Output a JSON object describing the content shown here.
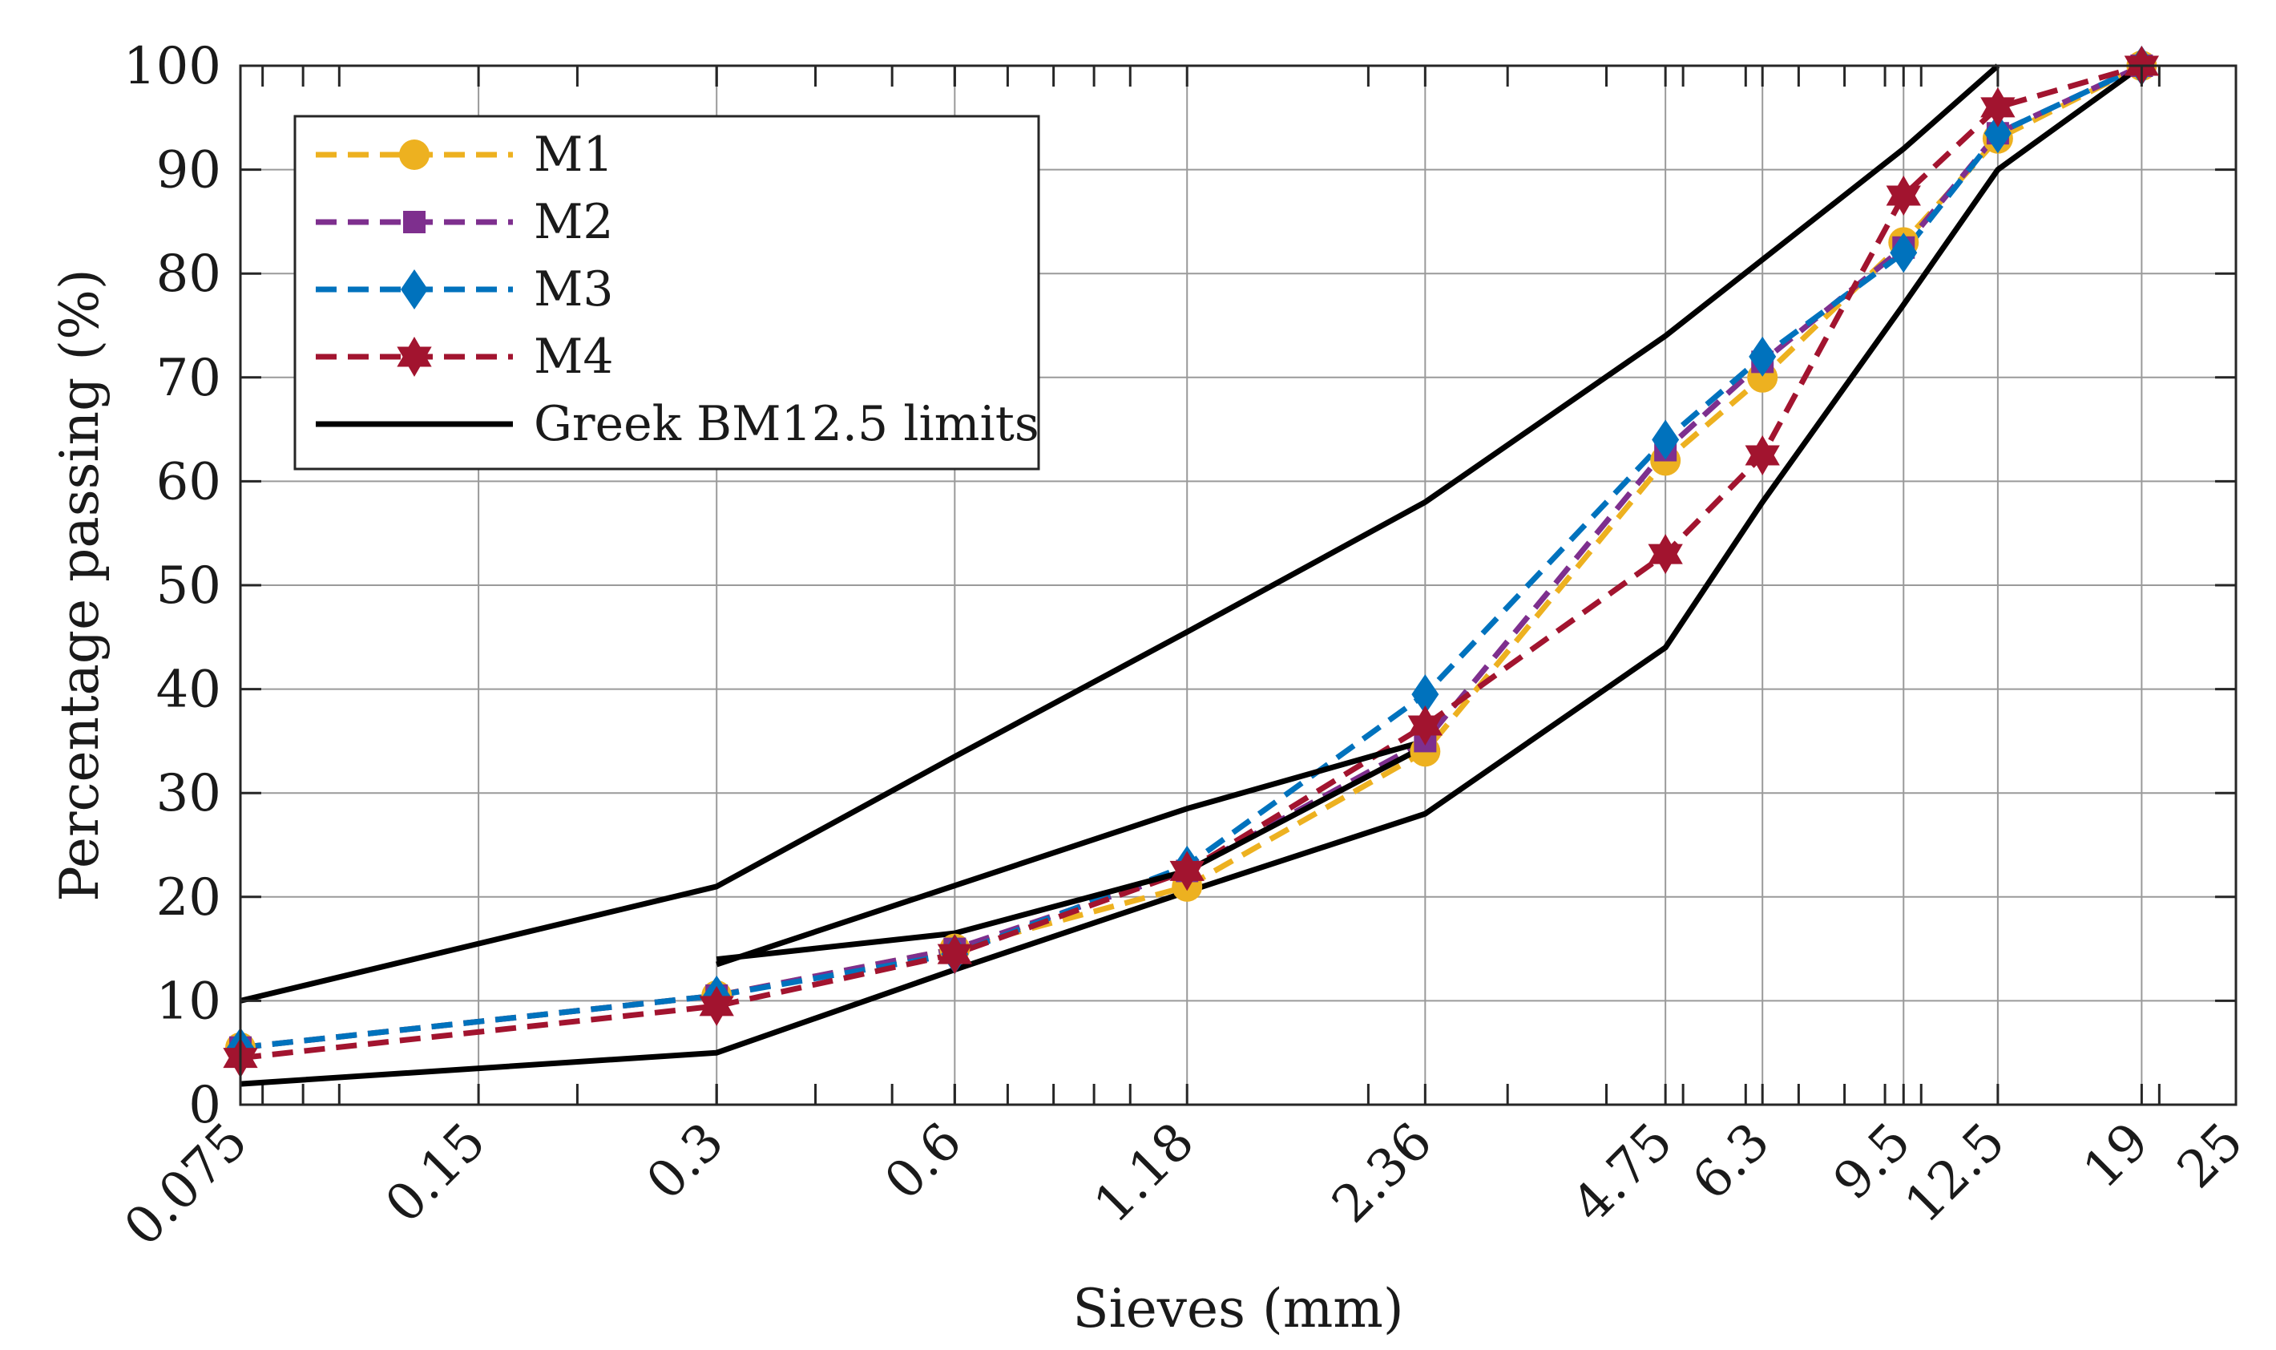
{
  "chart_data": {
    "type": "line",
    "xscale": "log",
    "x_ticks": [
      0.075,
      0.15,
      0.3,
      0.6,
      1.18,
      2.36,
      4.75,
      6.3,
      9.5,
      12.5,
      19,
      25
    ],
    "x_tick_labels": [
      "0.075",
      "0.15",
      "0.3",
      "0.6",
      "1.18",
      "2.36",
      "4.75",
      "6.3",
      "9.5",
      "12.5",
      "19",
      "25"
    ],
    "xlim": [
      0.075,
      25
    ],
    "ylim": [
      0,
      100
    ],
    "y_ticks": [
      0,
      10,
      20,
      30,
      40,
      50,
      60,
      70,
      80,
      90,
      100
    ],
    "y_tick_labels": [
      "0",
      "10",
      "20",
      "30",
      "40",
      "50",
      "60",
      "70",
      "80",
      "90",
      "100"
    ],
    "xlabel": "Sieves (mm)",
    "ylabel": "Percentage passing (%)",
    "grid": true,
    "legend_position": "top-left",
    "series": [
      {
        "name": "M1",
        "color": "#EDB120",
        "linestyle": "dashed",
        "marker": "circle",
        "x": [
          0.075,
          0.3,
          0.6,
          1.18,
          2.36,
          4.75,
          6.3,
          9.5,
          12.5,
          19
        ],
        "y": [
          5.5,
          10.5,
          15,
          21,
          34,
          62,
          70,
          83,
          93,
          100
        ]
      },
      {
        "name": "M2",
        "color": "#7E2F8E",
        "linestyle": "dashed",
        "marker": "square",
        "x": [
          0.075,
          0.3,
          0.6,
          1.18,
          2.36,
          4.75,
          6.3,
          9.5,
          12.5,
          19
        ],
        "y": [
          5.5,
          10.5,
          15,
          22.5,
          35,
          63,
          71.5,
          82.5,
          93.5,
          100
        ]
      },
      {
        "name": "M3",
        "color": "#0072BD",
        "linestyle": "dashed",
        "marker": "diamond",
        "x": [
          0.075,
          0.3,
          0.6,
          1.18,
          2.36,
          4.75,
          6.3,
          9.5,
          12.5,
          19
        ],
        "y": [
          5.5,
          10.5,
          14.5,
          23,
          39.5,
          64,
          72,
          82,
          93.5,
          100
        ]
      },
      {
        "name": "M4",
        "color": "#A2142F",
        "linestyle": "dashed",
        "marker": "hexagram",
        "x": [
          0.075,
          0.3,
          0.6,
          1.18,
          2.36,
          4.75,
          6.3,
          9.5,
          12.5,
          19
        ],
        "y": [
          4.5,
          9.5,
          14.5,
          22.5,
          36.5,
          53,
          62.5,
          87.5,
          96,
          100
        ]
      },
      {
        "name": "Greek BM12.5 limits",
        "color": "#000000",
        "linestyle": "solid",
        "marker": "none",
        "segments": [
          {
            "x": [
              0.075,
              0.3,
              0.6,
              1.18,
              2.36,
              4.75,
              9.5,
              12.5
            ],
            "y": [
              10,
              21,
              33.5,
              45.5,
              58,
              74,
              92,
              100
            ]
          },
          {
            "x": [
              0.075,
              0.3,
              0.6,
              1.18,
              2.36,
              4.75,
              6.3,
              9.5,
              12.5,
              19
            ],
            "y": [
              2,
              5,
              13,
              20.5,
              28,
              44,
              58,
              77,
              90,
              100
            ]
          },
          {
            "x": [
              0.3,
              0.6,
              1.18,
              2.36
            ],
            "y": [
              14,
              16.5,
              22.5,
              34.5
            ]
          },
          {
            "x": [
              0.3,
              1.18,
              2.36
            ],
            "y": [
              13.5,
              28.5,
              35
            ]
          }
        ]
      }
    ]
  }
}
